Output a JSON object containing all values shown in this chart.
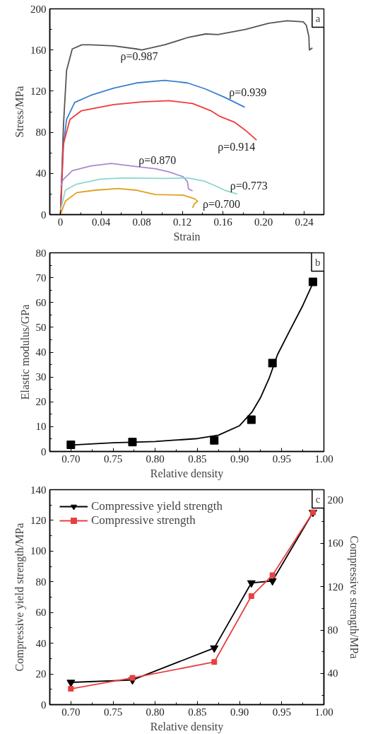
{
  "chart_data": [
    {
      "type": "line",
      "xlabel": "Strain",
      "ylabel": "Stress/MPa",
      "xlim": [
        -0.0105,
        0.2593
      ],
      "ylim": [
        0,
        200
      ],
      "xticks": [
        0,
        {
          "value": 0.02,
          "label": null
        },
        0.04,
        {
          "value": 0.06,
          "label": null
        },
        0.08,
        {
          "value": 0.1,
          "label": null
        },
        0.12,
        {
          "value": 0.14,
          "label": null
        },
        0.16,
        {
          "value": 0.18,
          "label": null
        },
        {
          "value": 0.2,
          "label": "0.20"
        },
        {
          "value": 0.22,
          "label": null
        },
        0.24
      ],
      "yticks": [
        0,
        {
          "value": 20,
          "label": null
        },
        40,
        {
          "value": 60,
          "label": null
        },
        80,
        {
          "value": 100,
          "label": null
        },
        120,
        {
          "value": 140,
          "label": null
        },
        160,
        {
          "value": 180,
          "label": null
        },
        200
      ],
      "grid": false,
      "legend": false,
      "marker": "none",
      "line_style": "solid",
      "series": [
        {
          "name": "ρ=0.987",
          "color": "#555555",
          "x": [
            0,
            0.003,
            0.006,
            0.0116,
            0.021,
            0.03,
            0.0525,
            0.075,
            0.08,
            0.1025,
            0.125,
            0.143,
            0.155,
            0.182,
            0.205,
            0.223,
            0.239,
            0.242,
            0.2445,
            0.245,
            0.248
          ],
          "values": [
            0,
            88,
            140,
            161,
            165,
            165,
            164,
            161,
            160,
            165,
            172,
            175.6,
            175,
            180,
            186,
            188.4,
            187.4,
            184,
            173,
            160,
            162
          ]
        },
        {
          "name": "ρ=0.939",
          "color": "#3a7fd0",
          "x": [
            0,
            0.0025,
            0.006,
            0.014,
            0.03,
            0.0525,
            0.075,
            0.1025,
            0.125,
            0.143,
            0.1616,
            0.1814
          ],
          "values": [
            0,
            64,
            92.5,
            109,
            116,
            123,
            128,
            130.5,
            128,
            122,
            114,
            104.4
          ]
        },
        {
          "name": "ρ=0.914",
          "color": "#f03a3a",
          "x": [
            0,
            0.003,
            0.0093,
            0.0207,
            0.0525,
            0.08,
            0.107,
            0.13,
            0.148,
            0.157,
            0.171,
            0.182,
            0.193
          ],
          "values": [
            0,
            69,
            92.5,
            101,
            107,
            109.6,
            110.8,
            108,
            101,
            95.4,
            90,
            82,
            72.4
          ]
        },
        {
          "name": "ρ=0.870",
          "color": "#a98ad0",
          "x": [
            0.0002,
            0.0025,
            0.0116,
            0.03,
            0.05,
            0.075,
            0.0934,
            0.107,
            0.1207,
            0.125,
            0.126,
            0.13
          ],
          "values": [
            27,
            34,
            42.7,
            47.4,
            49.8,
            46.7,
            44.6,
            41.5,
            36.8,
            32,
            25,
            23
          ]
        },
        {
          "name": "ρ=0.773",
          "color": "#88d8d0",
          "x": [
            0.0002,
            0.0048,
            0.016,
            0.039,
            0.0616,
            0.1025,
            0.125,
            0.141,
            0.1525,
            0.1616,
            0.174
          ],
          "values": [
            4.7,
            23.7,
            29.7,
            34.4,
            35.6,
            35.1,
            35.6,
            32.7,
            28,
            23.7,
            20
          ]
        },
        {
          "name": "ρ=0.700",
          "color": "#e0a020",
          "x": [
            0,
            0.0048,
            0.016,
            0.034,
            0.057,
            0.075,
            0.0934,
            0.1207,
            0.132,
            0.135,
            0.132,
            0.13
          ],
          "values": [
            0,
            13,
            21.4,
            23.7,
            25.4,
            23.7,
            19.5,
            19,
            15.4,
            13,
            10.7,
            6.6
          ]
        }
      ],
      "annotations": [
        "a"
      ]
    },
    {
      "type": "scatter",
      "xlabel": "Relative density",
      "ylabel": "Elastic modulus/GPa",
      "xlim": [
        0.675,
        1.0
      ],
      "ylim": [
        0,
        80
      ],
      "xticks": [
        {
          "value": 0.7,
          "label": "0.70"
        },
        {
          "value": 0.725,
          "label": null
        },
        0.75,
        {
          "value": 0.775,
          "label": null
        },
        {
          "value": 0.8,
          "label": "0.80"
        },
        {
          "value": 0.825,
          "label": null
        },
        0.85,
        {
          "value": 0.875,
          "label": null
        },
        {
          "value": 0.9,
          "label": "0.90"
        },
        {
          "value": 0.925,
          "label": null
        },
        0.95,
        {
          "value": 0.975,
          "label": null
        },
        {
          "value": 1.0,
          "label": "1.00"
        }
      ],
      "yticks": [
        0,
        {
          "value": 5,
          "label": null
        },
        10,
        {
          "value": 15,
          "label": null
        },
        20,
        {
          "value": 25,
          "label": null
        },
        30,
        {
          "value": 35,
          "label": null
        },
        40,
        {
          "value": 45,
          "label": null
        },
        50,
        {
          "value": 55,
          "label": null
        },
        60,
        {
          "value": 65,
          "label": null
        },
        70,
        {
          "value": 75,
          "label": null
        },
        80
      ],
      "grid": false,
      "legend": false,
      "marker": "square",
      "series": [
        {
          "type": "scatter",
          "color": "#000000",
          "x": [
            0.7,
            0.773,
            0.87,
            0.914,
            0.939,
            0.987
          ],
          "values": [
            2.7,
            3.8,
            4.5,
            12.8,
            35.6,
            68.3
          ]
        },
        {
          "type": "line",
          "color": "#000000",
          "marker": "none",
          "line_style": "solid",
          "x": [
            0.7,
            0.75,
            0.78,
            0.8,
            0.82,
            0.85,
            0.875,
            0.9,
            0.915,
            0.925,
            0.935,
            0.945,
            0.96,
            0.975,
            0.987
          ],
          "values": [
            2.6,
            3.5,
            3.8,
            4.0,
            4.5,
            5.2,
            6.6,
            10.4,
            16,
            21.8,
            29.4,
            39,
            49,
            58.8,
            67.8
          ]
        }
      ],
      "annotations": [
        "b"
      ]
    },
    {
      "type": "line",
      "xlabel": "Relative density",
      "ylabel": "Compressive yield strength/MPa",
      "y2label": "Compressive strength/MPa",
      "xlim": [
        0.675,
        1.0
      ],
      "ylim": [
        0,
        140
      ],
      "y2lim": [
        11.3,
        209.4
      ],
      "xticks": [
        {
          "value": 0.7,
          "label": "0.70"
        },
        {
          "value": 0.725,
          "label": null
        },
        0.75,
        {
          "value": 0.775,
          "label": null
        },
        {
          "value": 0.8,
          "label": "0.80"
        },
        {
          "value": 0.825,
          "label": null
        },
        0.85,
        {
          "value": 0.875,
          "label": null
        },
        {
          "value": 0.9,
          "label": "0.90"
        },
        {
          "value": 0.925,
          "label": null
        },
        0.95,
        {
          "value": 0.975,
          "label": null
        },
        {
          "value": 1.0,
          "label": "1.00"
        }
      ],
      "yticks": [
        0,
        {
          "value": 10,
          "label": null
        },
        20,
        {
          "value": 30,
          "label": null
        },
        40,
        {
          "value": 50,
          "label": null
        },
        60,
        {
          "value": 70,
          "label": null
        },
        80,
        {
          "value": 90,
          "label": null
        },
        100,
        {
          "value": 110,
          "label": null
        },
        120,
        {
          "value": 130,
          "label": null
        },
        140
      ],
      "y2ticks": [
        {
          "value": 20,
          "label": null
        },
        40,
        {
          "value": 60,
          "label": null
        },
        80,
        {
          "value": 100,
          "label": null
        },
        120,
        {
          "value": 140,
          "label": null
        },
        160,
        {
          "value": 180,
          "label": null
        },
        200
      ],
      "grid": false,
      "legend": "top left",
      "line_style": "solid",
      "x": [
        0.7,
        0.773,
        0.87,
        0.914,
        0.939,
        0.987
      ],
      "series": [
        {
          "name": "Compressive yield strength",
          "color": "#000000",
          "marker": "triangle",
          "values": [
            14.5,
            16.1,
            36.9,
            79.3,
            80.6,
            125.2
          ]
        },
        {
          "name": "Compressive strength",
          "color": "#e84040",
          "marker": "square",
          "axis": "y2",
          "values": [
            25.9,
            36,
            50.6,
            111.3,
            130.6,
            188.5
          ]
        }
      ],
      "annotations": [
        "c"
      ]
    }
  ]
}
